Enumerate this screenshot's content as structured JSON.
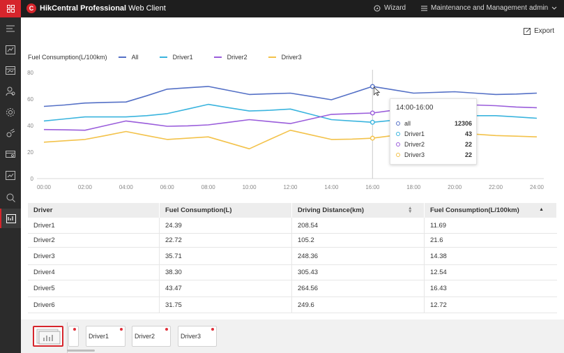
{
  "header": {
    "title_bold": "HikCentral Professional",
    "title_rest": " Web Client",
    "logo_letter": "C",
    "wizard_label": "Wizard",
    "maintenance_label": "Maintenance and Management",
    "user_label": "admin"
  },
  "nav": {
    "items": [
      "menu-icon",
      "map-icon",
      "monitoring-icon",
      "person-icon",
      "settings-icon",
      "vehicle-icon",
      "card-icon",
      "report-icon",
      "search-icon",
      "analysis-icon"
    ],
    "active_index": 9,
    "collapse_glyph": "›"
  },
  "toolbar": {
    "export_label": "Export"
  },
  "legend": {
    "title": "Fuel Consumption(L/100km)",
    "entries": [
      {
        "label": "All",
        "color": "#5470c6"
      },
      {
        "label": "Driver1",
        "color": "#3ab4de"
      },
      {
        "label": "Driver2",
        "color": "#9a5ddb"
      },
      {
        "label": "Driver3",
        "color": "#f3c24a"
      }
    ]
  },
  "chart_data": {
    "type": "line",
    "x": [
      "00:00",
      "01:00",
      "02:00",
      "03:00",
      "04:00",
      "05:00",
      "06:00",
      "07:00",
      "08:00",
      "09:00",
      "10:00",
      "11:00",
      "12:00",
      "13:00",
      "14:00",
      "15:00",
      "16:00",
      "17:00",
      "18:00",
      "19:00",
      "20:00",
      "21:00",
      "22:00",
      "23:00",
      "24:00"
    ],
    "x_tick_labels": [
      "00:00",
      "02:00",
      "04:00",
      "06:00",
      "08:00",
      "10:00",
      "12:00",
      "14:00",
      "16:00",
      "18:00",
      "20:00",
      "22:00",
      "24:00"
    ],
    "y_ticks": [
      0,
      20,
      40,
      60,
      80
    ],
    "ylim": [
      0,
      80
    ],
    "grid": false,
    "series": [
      {
        "name": "All",
        "color": "#5470c6",
        "values": [
          54.5,
          55.5,
          57,
          57.5,
          57.8,
          62.5,
          67.5,
          68.5,
          69.5,
          66.5,
          63.5,
          64,
          64.5,
          62,
          59.5,
          64.5,
          69.5,
          67,
          64.5,
          65,
          65.5,
          64.5,
          63.5,
          63.8,
          64.5
        ]
      },
      {
        "name": "Driver1",
        "color": "#3ab4de",
        "values": [
          43.5,
          45,
          46.5,
          46.5,
          46.5,
          47.5,
          49,
          52.5,
          56,
          53.5,
          51,
          51.5,
          52.5,
          48.5,
          44.5,
          43.5,
          42.5,
          44,
          46,
          47,
          47.5,
          47.5,
          47.5,
          46.5,
          45.5
        ]
      },
      {
        "name": "Driver2",
        "color": "#9a5ddb",
        "values": [
          37,
          36.8,
          36.5,
          40,
          43.5,
          41.5,
          39.5,
          39.8,
          40.5,
          42.5,
          44.5,
          43,
          41.5,
          45,
          48.5,
          49,
          49.5,
          51.5,
          53.5,
          55,
          56.5,
          55.5,
          55,
          54,
          53.5
        ]
      },
      {
        "name": "Driver3",
        "color": "#f3c24a",
        "values": [
          27.5,
          28.5,
          29.5,
          32.5,
          35.5,
          32.5,
          29.5,
          30.5,
          31.5,
          27,
          22.5,
          29.5,
          36.5,
          33,
          29.5,
          29.8,
          30.5,
          32.5,
          34.5,
          34.5,
          34.5,
          33.5,
          32.5,
          32,
          31.5
        ]
      }
    ],
    "highlight_index": 16
  },
  "tooltip": {
    "title": "14:00-16:00",
    "rows": [
      {
        "name": "all",
        "value": "12306",
        "color": "#5470c6"
      },
      {
        "name": "Driver1",
        "value": "43",
        "color": "#3ab4de"
      },
      {
        "name": "Driver2",
        "value": "22",
        "color": "#9a5ddb"
      },
      {
        "name": "Driver3",
        "value": "22",
        "color": "#f3c24a"
      }
    ]
  },
  "table": {
    "headers": [
      "Driver",
      "Fuel Consumption(L)",
      "Driving Distance(km)",
      "Fuel Consumption(L/100km)"
    ],
    "rows": [
      [
        "Driver1",
        "24.39",
        "208.54",
        "11.69"
      ],
      [
        "Driver2",
        "22.72",
        "105.2",
        "21.6"
      ],
      [
        "Driver3",
        "35.71",
        "248.36",
        "14.38"
      ],
      [
        "Driver4",
        "38.30",
        "305.43",
        "12.54"
      ],
      [
        "Driver5",
        "43.47",
        "264.56",
        "16.43"
      ],
      [
        "Driver6",
        "31.75",
        "249.6",
        "12.72"
      ]
    ]
  },
  "bottom": {
    "cards": [
      "Driver1",
      "Driver2",
      "Driver3"
    ]
  }
}
